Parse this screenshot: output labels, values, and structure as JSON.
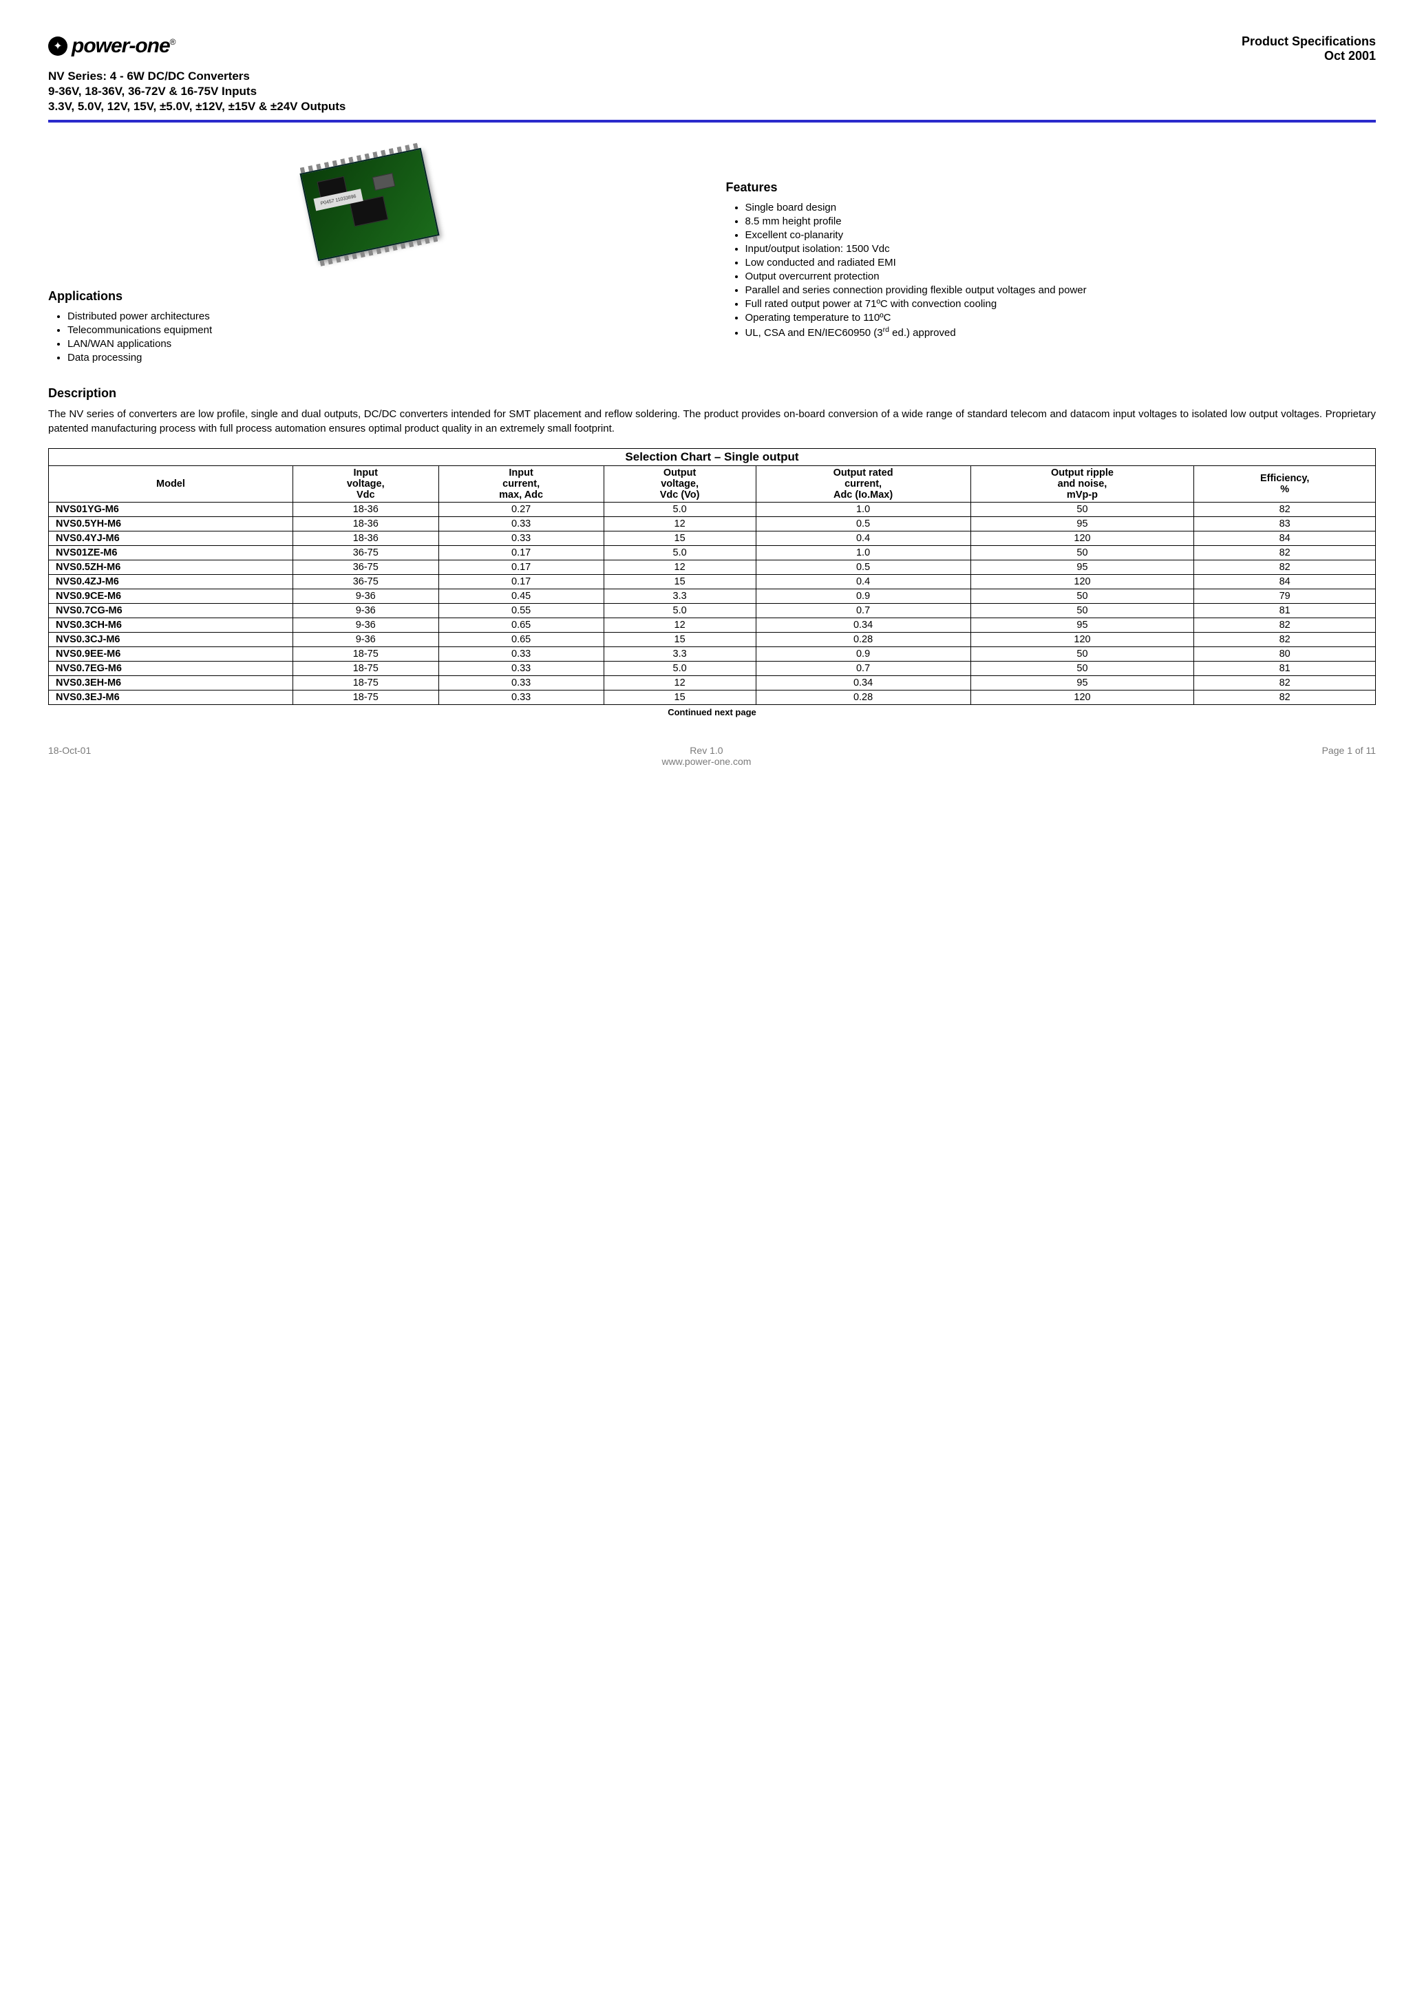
{
  "brand": {
    "name": "power-one",
    "reg": "®"
  },
  "spec_header": {
    "line1": "Product Specifications",
    "line2": "Oct 2001"
  },
  "subheader": {
    "l1": "NV Series: 4 - 6W DC/DC Converters",
    "l2": "9-36V, 18-36V, 36-72V & 16-75V Inputs",
    "l3": "3.3V, 5.0V, 12V, 15V,  ±5.0V, ±12V, ±15V & ±24V Outputs"
  },
  "applications": {
    "title": "Applications",
    "items": [
      "Distributed power architectures",
      "Telecommunications equipment",
      "LAN/WAN applications",
      "Data processing"
    ]
  },
  "features": {
    "title": "Features",
    "items": [
      "Single board design",
      "8.5 mm height profile",
      "Excellent co-planarity",
      "Input/output isolation: 1500 Vdc",
      "Low conducted and radiated EMI",
      "Output overcurrent protection",
      "Parallel and series connection providing flexible output voltages and power",
      "Full rated output power at 71ºC with convection cooling",
      "Operating temperature to 110ºC",
      "UL, CSA and EN/IEC60950 (3rd ed.) approved"
    ]
  },
  "description": {
    "title": "Description",
    "text": "The NV series of converters are  low profile, single and dual outputs, DC/DC converters intended for SMT placement and reflow soldering.  The product provides on-board conversion of a wide range of standard telecom and datacom input voltages to isolated low output voltages.  Proprietary patented manufacturing process with full process automation ensures optimal product quality in an extremely small footprint."
  },
  "table": {
    "title": "Selection Chart – Single output",
    "columns": [
      "Model",
      "Input voltage, Vdc",
      "Input current, max, Adc",
      "Output voltage, Vdc (Vo)",
      "Output rated current, Adc (Io.Max)",
      "Output ripple and noise, mVp-p",
      "Efficiency, %"
    ],
    "rows": [
      [
        "NVS01YG-M6",
        "18-36",
        "0.27",
        "5.0",
        "1.0",
        "50",
        "82"
      ],
      [
        "NVS0.5YH-M6",
        "18-36",
        "0.33",
        "12",
        "0.5",
        "95",
        "83"
      ],
      [
        "NVS0.4YJ-M6",
        "18-36",
        "0.33",
        "15",
        "0.4",
        "120",
        "84"
      ],
      [
        "NVS01ZE-M6",
        "36-75",
        "0.17",
        "5.0",
        "1.0",
        "50",
        "82"
      ],
      [
        "NVS0.5ZH-M6",
        "36-75",
        "0.17",
        "12",
        "0.5",
        "95",
        "82"
      ],
      [
        "NVS0.4ZJ-M6",
        "36-75",
        "0.17",
        "15",
        "0.4",
        "120",
        "84"
      ],
      [
        "NVS0.9CE-M6",
        "9-36",
        "0.45",
        "3.3",
        "0.9",
        "50",
        "79"
      ],
      [
        "NVS0.7CG-M6",
        "9-36",
        "0.55",
        "5.0",
        "0.7",
        "50",
        "81"
      ],
      [
        "NVS0.3CH-M6",
        "9-36",
        "0.65",
        "12",
        "0.34",
        "95",
        "82"
      ],
      [
        "NVS0.3CJ-M6",
        "9-36",
        "0.65",
        "15",
        "0.28",
        "120",
        "82"
      ],
      [
        "NVS0.9EE-M6",
        "18-75",
        "0.33",
        "3.3",
        "0.9",
        "50",
        "80"
      ],
      [
        "NVS0.7EG-M6",
        "18-75",
        "0.33",
        "5.0",
        "0.7",
        "50",
        "81"
      ],
      [
        "NVS0.3EH-M6",
        "18-75",
        "0.33",
        "12",
        "0.34",
        "95",
        "82"
      ],
      [
        "NVS0.3EJ-M6",
        "18-75",
        "0.33",
        "15",
        "0.28",
        "120",
        "82"
      ]
    ],
    "continued": "Continued next page"
  },
  "footer": {
    "left": "18-Oct-01",
    "center_top": "Rev 1.0",
    "center_bottom": "www.power-one.com",
    "right_label": "Page ",
    "right_current": "1",
    "right_of": " of ",
    "right_total": "11"
  },
  "colors": {
    "divider": "#2b2bcc",
    "text": "#000000",
    "footer_text": "#7a7a7a",
    "background": "#ffffff"
  }
}
